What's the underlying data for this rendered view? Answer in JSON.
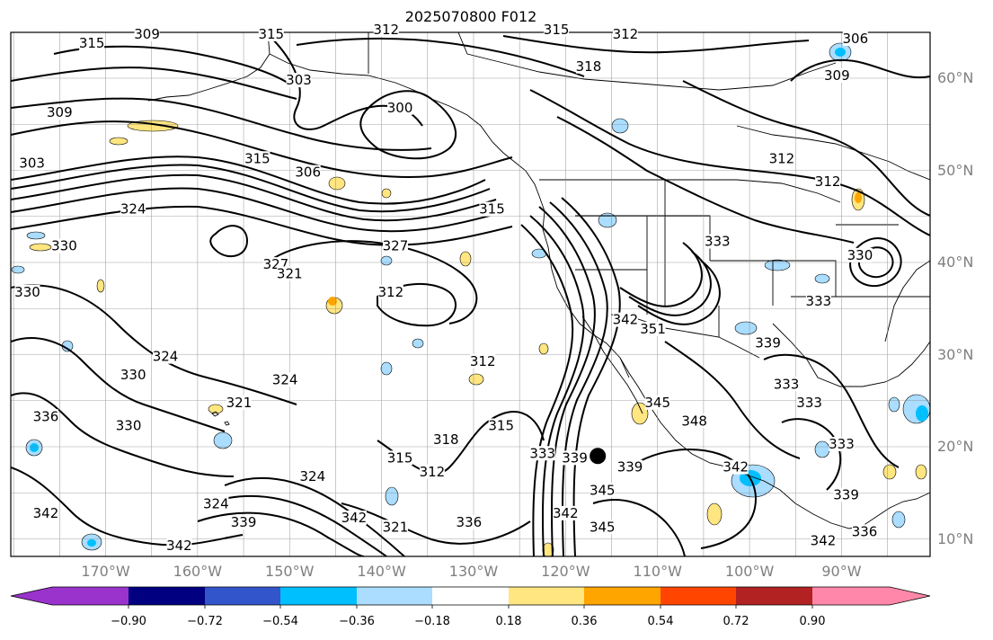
{
  "title": "2025070800 F012",
  "latitude_labels": [
    "60°N",
    "50°N",
    "40°N",
    "30°N",
    "20°N",
    "10°N"
  ],
  "longitude_labels": [
    "170°W",
    "160°W",
    "150°W",
    "140°W",
    "130°W",
    "120°W",
    "110°W",
    "100°W",
    "90°W"
  ],
  "colorbar": {
    "tick_labels": [
      "−0.90",
      "−0.72",
      "−0.54",
      "−0.36",
      "−0.18",
      "0.18",
      "0.36",
      "0.54",
      "0.72",
      "0.90"
    ],
    "colors": [
      "#9933cc",
      "#000080",
      "#3355cc",
      "#00bfff",
      "#aaddff",
      "#ffffff",
      "#ffe680",
      "#ffa500",
      "#ff4500",
      "#b22222",
      "#ff88aa"
    ]
  },
  "contour_labels": [
    {
      "text": "315",
      "lon": -171.5,
      "lat": 63.5
    },
    {
      "text": "309",
      "lon": -165.5,
      "lat": 64.5
    },
    {
      "text": "315",
      "lon": -152.0,
      "lat": 64.5
    },
    {
      "text": "312",
      "lon": -139.5,
      "lat": 65.0
    },
    {
      "text": "315",
      "lon": -121.0,
      "lat": 65.0
    },
    {
      "text": "312",
      "lon": -113.5,
      "lat": 64.5
    },
    {
      "text": "318",
      "lon": -117.5,
      "lat": 61.0
    },
    {
      "text": "309",
      "lon": -90.5,
      "lat": 60.0
    },
    {
      "text": "306",
      "lon": -88.5,
      "lat": 64.0
    },
    {
      "text": "303",
      "lon": -149.0,
      "lat": 59.5
    },
    {
      "text": "300",
      "lon": -138.0,
      "lat": 56.5
    },
    {
      "text": "309",
      "lon": -175.0,
      "lat": 56.0
    },
    {
      "text": "303",
      "lon": -178.0,
      "lat": 50.5
    },
    {
      "text": "315",
      "lon": -153.5,
      "lat": 51.0
    },
    {
      "text": "306",
      "lon": -148.0,
      "lat": 49.5
    },
    {
      "text": "315",
      "lon": -128.0,
      "lat": 45.5
    },
    {
      "text": "312",
      "lon": -96.5,
      "lat": 51.0
    },
    {
      "text": "312",
      "lon": -91.5,
      "lat": 48.5
    },
    {
      "text": "324",
      "lon": -167.0,
      "lat": 45.5
    },
    {
      "text": "330",
      "lon": -174.5,
      "lat": 41.5
    },
    {
      "text": "327",
      "lon": -138.5,
      "lat": 41.5
    },
    {
      "text": "327",
      "lon": -151.5,
      "lat": 39.5
    },
    {
      "text": "321",
      "lon": -150.0,
      "lat": 38.5
    },
    {
      "text": "333",
      "lon": -103.5,
      "lat": 42.0
    },
    {
      "text": "330",
      "lon": -178.5,
      "lat": 36.5
    },
    {
      "text": "312",
      "lon": -139.0,
      "lat": 36.5
    },
    {
      "text": "342",
      "lon": -113.5,
      "lat": 33.5
    },
    {
      "text": "351",
      "lon": -110.5,
      "lat": 32.5
    },
    {
      "text": "339",
      "lon": -98.0,
      "lat": 31.0
    },
    {
      "text": "324",
      "lon": -163.5,
      "lat": 29.5
    },
    {
      "text": "312",
      "lon": -129.0,
      "lat": 29.0
    },
    {
      "text": "330",
      "lon": -167.0,
      "lat": 27.5
    },
    {
      "text": "324",
      "lon": -150.5,
      "lat": 27.0
    },
    {
      "text": "336",
      "lon": -176.5,
      "lat": 23.0
    },
    {
      "text": "321",
      "lon": -155.5,
      "lat": 24.5
    },
    {
      "text": "330",
      "lon": -167.5,
      "lat": 22.0
    },
    {
      "text": "315",
      "lon": -127.0,
      "lat": 22.0
    },
    {
      "text": "318",
      "lon": -133.0,
      "lat": 20.5
    },
    {
      "text": "345",
      "lon": -110.0,
      "lat": 24.5
    },
    {
      "text": "348",
      "lon": -106.0,
      "lat": 22.5
    },
    {
      "text": "333",
      "lon": -93.5,
      "lat": 24.5
    },
    {
      "text": "333",
      "lon": -90.0,
      "lat": 20.0
    },
    {
      "text": "339",
      "lon": -113.0,
      "lat": 17.5
    },
    {
      "text": "342",
      "lon": -101.5,
      "lat": 17.5
    },
    {
      "text": "339",
      "lon": -89.5,
      "lat": 14.5
    },
    {
      "text": "312",
      "lon": -134.5,
      "lat": 17.0
    },
    {
      "text": "315",
      "lon": -138.0,
      "lat": 18.5
    },
    {
      "text": "324",
      "lon": -147.5,
      "lat": 16.5
    },
    {
      "text": "324",
      "lon": -158.0,
      "lat": 13.5
    },
    {
      "text": "339",
      "lon": -155.0,
      "lat": 11.5
    },
    {
      "text": "342",
      "lon": -143.0,
      "lat": 12.0
    },
    {
      "text": "321",
      "lon": -138.5,
      "lat": 11.0
    },
    {
      "text": "336",
      "lon": -130.5,
      "lat": 11.5
    },
    {
      "text": "342",
      "lon": -176.5,
      "lat": 12.5
    },
    {
      "text": "342",
      "lon": -162.0,
      "lat": 9.0
    },
    {
      "text": "345",
      "lon": -116.0,
      "lat": 15.0
    },
    {
      "text": "342",
      "lon": -120.0,
      "lat": 12.5
    },
    {
      "text": "345",
      "lon": -116.0,
      "lat": 11.0
    },
    {
      "text": "336",
      "lon": -87.5,
      "lat": 10.5
    },
    {
      "text": "342",
      "lon": -92.0,
      "lat": 9.5
    },
    {
      "text": "339",
      "lon": -119.0,
      "lat": 18.5
    },
    {
      "text": "333",
      "lon": -122.5,
      "lat": 19.0
    },
    {
      "text": "333",
      "lon": -92.5,
      "lat": 35.5
    },
    {
      "text": "330",
      "lon": -88.0,
      "lat": 40.5
    },
    {
      "text": "333",
      "lon": -96.0,
      "lat": 26.5
    }
  ],
  "marker": {
    "lon": -116.5,
    "lat": 19.0
  }
}
